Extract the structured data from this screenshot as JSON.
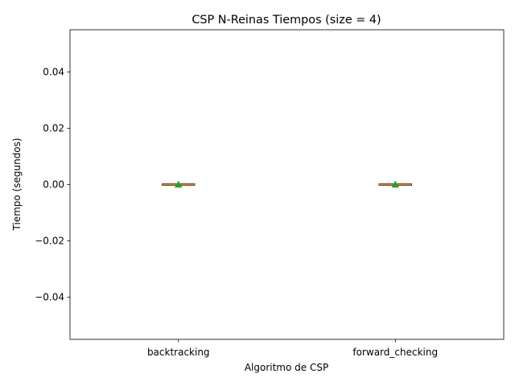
{
  "chart_data": {
    "type": "box",
    "title": "CSP N-Reinas Tiempos (size = 4)",
    "xlabel": "Algoritmo de CSP",
    "ylabel": "Tiempo (segundos)",
    "categories": [
      "backtracking",
      "forward_checking"
    ],
    "ylim": [
      -0.055,
      0.055
    ],
    "yticks": [
      -0.04,
      -0.02,
      0.0,
      0.02,
      0.04
    ],
    "ytick_labels": [
      "−0.04",
      "−0.02",
      "0.00",
      "0.02",
      "0.04"
    ],
    "boxes": [
      {
        "category": "backtracking",
        "min": 0.0,
        "q1": 0.0,
        "median": 0.0,
        "q3": 0.0,
        "max": 0.0,
        "mean": 0.0
      },
      {
        "category": "forward_checking",
        "min": 0.0,
        "q1": 0.0,
        "median": 0.0,
        "q3": 0.0,
        "max": 0.0,
        "mean": 0.0
      }
    ],
    "grid": false,
    "colors": {
      "median": "#ff7f0e",
      "mean_marker": "#2ca02c",
      "box": "#000000"
    }
  }
}
